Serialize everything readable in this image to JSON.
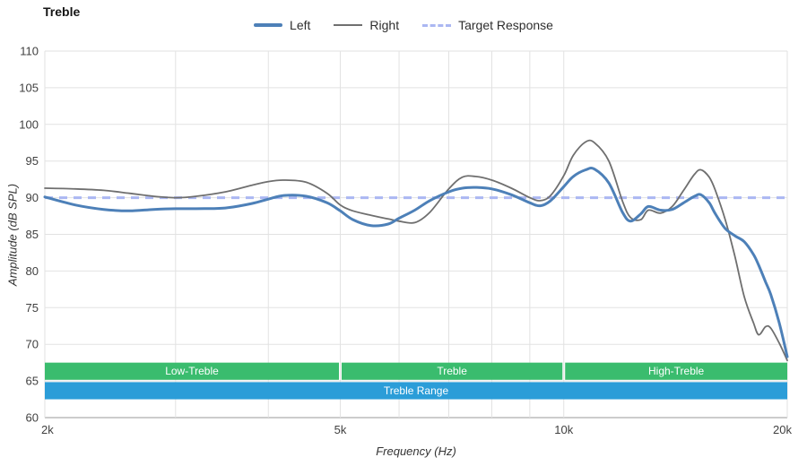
{
  "header": {
    "title": "Treble"
  },
  "legend": {
    "items": [
      {
        "label": "Left",
        "color": "#4d80b8",
        "style": "solid-thick"
      },
      {
        "label": "Right",
        "color": "#6f6f6f",
        "style": "solid-thin"
      },
      {
        "label": "Target Response",
        "color": "#abb7f2",
        "style": "dashed"
      }
    ]
  },
  "chart_data": {
    "type": "line",
    "title": "Treble",
    "xlabel": "Frequency (Hz)",
    "ylabel": "Amplitude (dB SPL)",
    "x_scale": "log",
    "xlim": [
      2000,
      20000
    ],
    "ylim": [
      60,
      110
    ],
    "grid": true,
    "legend_position": "top-center",
    "y_ticks": [
      {
        "value": 110,
        "label": "110"
      },
      {
        "value": 105,
        "label": "105"
      },
      {
        "value": 100,
        "label": "100"
      },
      {
        "value": 95,
        "label": "95"
      },
      {
        "value": 90,
        "label": "90"
      },
      {
        "value": 85,
        "label": "85"
      },
      {
        "value": 80,
        "label": "80"
      },
      {
        "value": 75,
        "label": "75"
      },
      {
        "value": 70,
        "label": "70"
      },
      {
        "value": 65,
        "label": "65"
      },
      {
        "value": 60,
        "label": "60"
      }
    ],
    "x_ticks": [
      {
        "value": 2000,
        "label": "2k"
      },
      {
        "value": 5000,
        "label": "5k"
      },
      {
        "value": 10000,
        "label": "10k"
      },
      {
        "value": 20000,
        "label": "20k"
      }
    ],
    "x_gridlines": [
      2000,
      3000,
      4000,
      5000,
      6000,
      7000,
      8000,
      9000,
      10000,
      20000
    ],
    "x": [
      2000,
      2200,
      2400,
      2600,
      2800,
      3000,
      3200,
      3500,
      3800,
      4000,
      4200,
      4500,
      4800,
      5000,
      5200,
      5500,
      5800,
      6000,
      6300,
      6600,
      7000,
      7300,
      7600,
      8000,
      8500,
      9000,
      9300,
      9600,
      10000,
      10300,
      10700,
      11000,
      11500,
      12000,
      12300,
      12700,
      13000,
      13500,
      14000,
      14500,
      15000,
      15300,
      15700,
      16000,
      16500,
      17000,
      17500,
      18000,
      18300,
      18700,
      19000,
      19500,
      20000
    ],
    "series": [
      {
        "name": "Left",
        "color": "#4d80b8",
        "width": 3,
        "values": [
          90.1,
          89.0,
          88.4,
          88.2,
          88.4,
          88.5,
          88.5,
          88.6,
          89.2,
          89.8,
          90.3,
          90.2,
          89.3,
          88.2,
          87.0,
          86.2,
          86.4,
          87.2,
          88.3,
          89.6,
          90.8,
          91.3,
          91.4,
          91.2,
          90.4,
          89.3,
          88.9,
          89.6,
          91.5,
          92.9,
          93.8,
          93.9,
          92.0,
          88.0,
          86.8,
          87.8,
          88.8,
          88.3,
          88.4,
          89.3,
          90.2,
          90.4,
          89.3,
          87.8,
          85.8,
          84.8,
          84.0,
          82.3,
          80.8,
          78.5,
          76.8,
          73.0,
          68.3
        ]
      },
      {
        "name": "Right",
        "color": "#6f6f6f",
        "width": 1.8,
        "values": [
          91.3,
          91.2,
          91.0,
          90.6,
          90.2,
          90.0,
          90.2,
          90.8,
          91.7,
          92.2,
          92.4,
          92.1,
          90.6,
          89.0,
          88.2,
          87.6,
          87.1,
          86.8,
          86.6,
          88.0,
          91.2,
          92.8,
          92.9,
          92.4,
          91.3,
          90.0,
          89.6,
          90.3,
          93.0,
          95.8,
          97.6,
          97.5,
          95.0,
          89.5,
          87.3,
          87.0,
          88.3,
          87.9,
          88.8,
          91.0,
          93.2,
          93.8,
          92.8,
          91.0,
          87.0,
          82.0,
          76.5,
          73.0,
          71.3,
          72.4,
          72.2,
          70.2,
          67.8
        ]
      },
      {
        "name": "Target Response",
        "color": "#abb7f2",
        "width": 3,
        "dash": "9 7",
        "flat_value": 90
      }
    ],
    "bands": [
      {
        "label": "Low-Treble",
        "from": 2000,
        "to": 5000,
        "row": "top",
        "color": "#3abc6e"
      },
      {
        "label": "Treble",
        "from": 5000,
        "to": 10000,
        "row": "top",
        "color": "#3abc6e"
      },
      {
        "label": "High-Treble",
        "from": 10000,
        "to": 20000,
        "row": "top",
        "color": "#3abc6e"
      },
      {
        "label": "Treble Range",
        "from": 2000,
        "to": 20000,
        "row": "bottom",
        "color": "#2b9dd8"
      }
    ],
    "band_rows": {
      "top": [
        65,
        67.5
      ],
      "bottom": [
        62.5,
        65
      ]
    }
  }
}
